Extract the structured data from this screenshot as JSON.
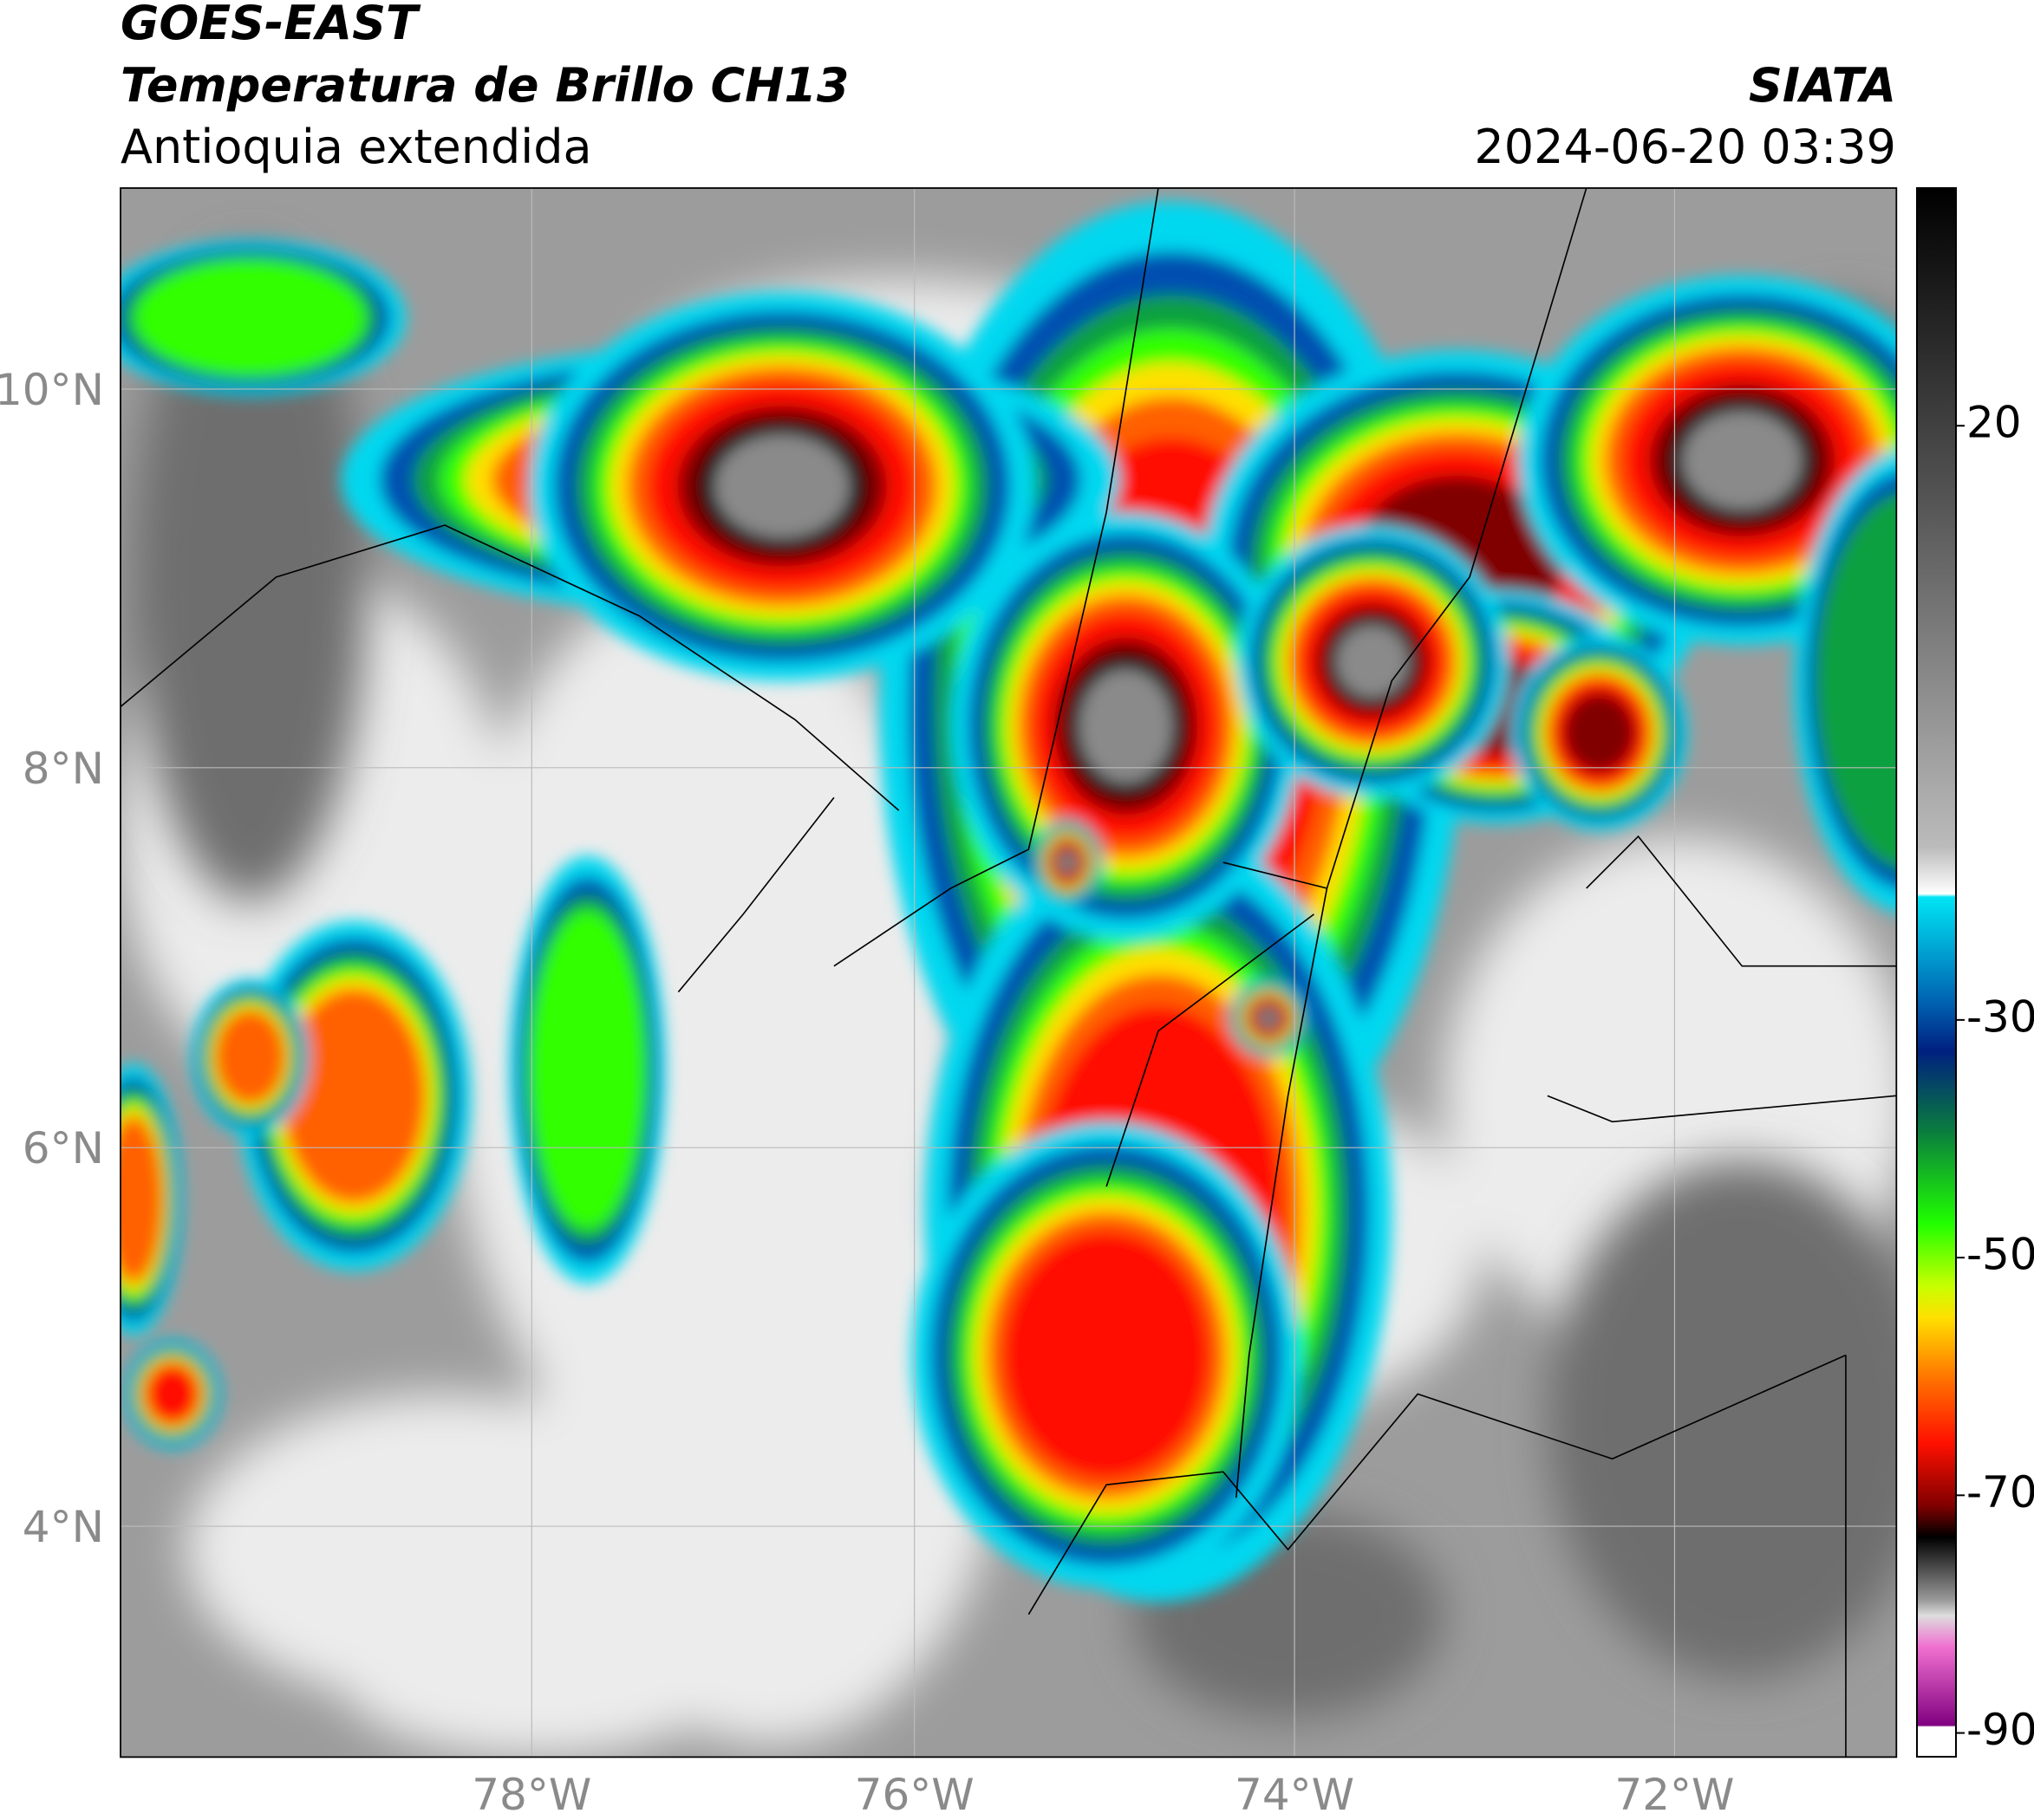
{
  "header": {
    "satellite": "GOES-EAST",
    "product": "Temperatura de Brillo CH13",
    "region": "Antioquia extendida",
    "agency": "SIATA",
    "datetime": "2024-06-20 03:39"
  },
  "map": {
    "lat_labels": [
      "10°N",
      "8°N",
      "6°N",
      "4°N"
    ],
    "lon_labels": [
      "78°W",
      "76°W",
      "74°W",
      "72°W"
    ]
  },
  "colorbar": {
    "lim": [
      -92,
      40
    ],
    "ticks": [
      20,
      -30,
      -50,
      -70,
      -90
    ]
  }
}
